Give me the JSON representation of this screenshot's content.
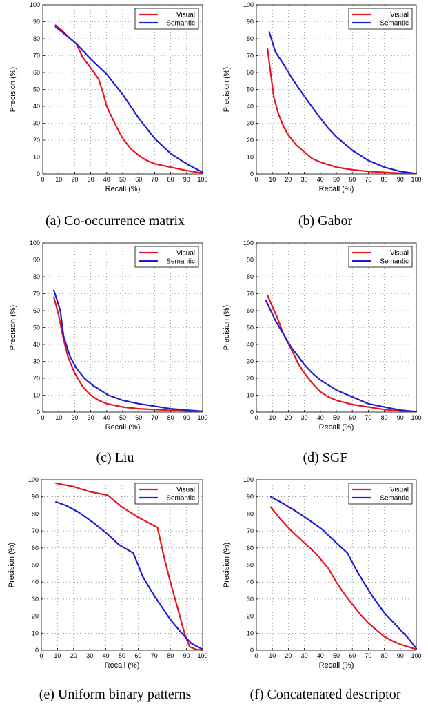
{
  "chart_data": [
    {
      "type": "line",
      "caption": "(a) Co-occurrence matrix",
      "xlabel": "Recall (%)",
      "ylabel": "Precision (%)",
      "xlim": [
        0,
        100
      ],
      "ylim": [
        0,
        100
      ],
      "xticks": [
        "0",
        "10",
        "20",
        "30",
        "40",
        "50",
        "60",
        "70",
        "80",
        "90",
        "100"
      ],
      "yticks": [
        "0",
        "10",
        "20",
        "30",
        "40",
        "50",
        "60",
        "70",
        "80",
        "90",
        "100"
      ],
      "grid": true,
      "legend": "top-right",
      "series": [
        {
          "name": "Visual",
          "color": "#e8161d",
          "points": [
            [
              8,
              88
            ],
            [
              12,
              85
            ],
            [
              16,
              81
            ],
            [
              21,
              77
            ],
            [
              25,
              69
            ],
            [
              29,
              64
            ],
            [
              35,
              56
            ],
            [
              38,
              47
            ],
            [
              40,
              40
            ],
            [
              45,
              30
            ],
            [
              50,
              21
            ],
            [
              55,
              15
            ],
            [
              60,
              11
            ],
            [
              65,
              8
            ],
            [
              70,
              6
            ],
            [
              80,
              4
            ],
            [
              90,
              2
            ],
            [
              100,
              0.5
            ]
          ]
        },
        {
          "name": "Semantic",
          "color": "#1f1fd1",
          "points": [
            [
              8,
              87
            ],
            [
              12,
              84
            ],
            [
              16,
              81
            ],
            [
              21,
              77
            ],
            [
              30,
              68
            ],
            [
              40,
              59
            ],
            [
              50,
              47
            ],
            [
              60,
              33
            ],
            [
              70,
              21
            ],
            [
              80,
              12
            ],
            [
              90,
              6
            ],
            [
              100,
              1
            ]
          ]
        }
      ]
    },
    {
      "type": "line",
      "caption": "(b) Gabor",
      "xlabel": "Recall (%)",
      "ylabel": "Precision (%)",
      "xlim": [
        0,
        100
      ],
      "ylim": [
        0,
        100
      ],
      "xticks": [
        "0",
        "10",
        "20",
        "30",
        "40",
        "50",
        "60",
        "70",
        "80",
        "90",
        "100"
      ],
      "yticks": [
        "0",
        "10",
        "20",
        "30",
        "40",
        "50",
        "60",
        "70",
        "80",
        "90",
        "100"
      ],
      "grid": true,
      "legend": "top-right",
      "series": [
        {
          "name": "Visual",
          "color": "#e8161d",
          "points": [
            [
              7,
              74
            ],
            [
              9,
              59
            ],
            [
              11,
              45
            ],
            [
              14,
              35
            ],
            [
              17,
              28
            ],
            [
              20,
              23
            ],
            [
              25,
              17
            ],
            [
              30,
              13
            ],
            [
              35,
              9
            ],
            [
              40,
              7
            ],
            [
              50,
              4
            ],
            [
              60,
              2.5
            ],
            [
              70,
              1.5
            ],
            [
              80,
              1
            ],
            [
              90,
              0.5
            ],
            [
              100,
              0.3
            ]
          ]
        },
        {
          "name": "Semantic",
          "color": "#1f1fd1",
          "points": [
            [
              8,
              84
            ],
            [
              12,
              72
            ],
            [
              17,
              65
            ],
            [
              22,
              57
            ],
            [
              27,
              50
            ],
            [
              33,
              42
            ],
            [
              40,
              33
            ],
            [
              45,
              27
            ],
            [
              50,
              22
            ],
            [
              60,
              14
            ],
            [
              70,
              8
            ],
            [
              80,
              4
            ],
            [
              90,
              1.5
            ],
            [
              100,
              0.3
            ]
          ]
        }
      ]
    },
    {
      "type": "line",
      "caption": "(c) Liu",
      "xlabel": "Recall (%)",
      "ylabel": "Precision (%)",
      "xlim": [
        0,
        100
      ],
      "ylim": [
        0,
        100
      ],
      "xticks": [
        "0",
        "10",
        "20",
        "30",
        "40",
        "50",
        "60",
        "70",
        "80",
        "90",
        "100"
      ],
      "yticks": [
        "0",
        "10",
        "20",
        "30",
        "40",
        "50",
        "60",
        "70",
        "80",
        "90",
        "100"
      ],
      "grid": true,
      "legend": "top-right",
      "series": [
        {
          "name": "Visual",
          "color": "#e8161d",
          "points": [
            [
              7,
              68
            ],
            [
              10,
              57
            ],
            [
              13,
              43
            ],
            [
              16,
              32
            ],
            [
              20,
              23
            ],
            [
              25,
              15
            ],
            [
              30,
              10
            ],
            [
              35,
              7
            ],
            [
              40,
              5
            ],
            [
              50,
              3
            ],
            [
              60,
              2
            ],
            [
              70,
              1.5
            ],
            [
              80,
              1
            ],
            [
              90,
              0.7
            ],
            [
              100,
              0.3
            ]
          ]
        },
        {
          "name": "Semantic",
          "color": "#1f1fd1",
          "points": [
            [
              7,
              72
            ],
            [
              11,
              60
            ],
            [
              13,
              45
            ],
            [
              17,
              33
            ],
            [
              21,
              26
            ],
            [
              26,
              20
            ],
            [
              31,
              16
            ],
            [
              36,
              13
            ],
            [
              41,
              10
            ],
            [
              50,
              7
            ],
            [
              60,
              5
            ],
            [
              70,
              3.5
            ],
            [
              80,
              2
            ],
            [
              90,
              1.2
            ],
            [
              100,
              0.5
            ]
          ]
        }
      ]
    },
    {
      "type": "line",
      "caption": "(d) SGF",
      "xlabel": "Recall (%)",
      "ylabel": "Precision (%)",
      "xlim": [
        0,
        100
      ],
      "ylim": [
        0,
        100
      ],
      "xticks": [
        "0",
        "10",
        "20",
        "30",
        "40",
        "50",
        "60",
        "70",
        "80",
        "90",
        "100"
      ],
      "yticks": [
        "0",
        "10",
        "20",
        "30",
        "40",
        "50",
        "60",
        "70",
        "80",
        "90",
        "100"
      ],
      "grid": true,
      "legend": "top-right",
      "series": [
        {
          "name": "Visual",
          "color": "#e8161d",
          "points": [
            [
              7,
              69
            ],
            [
              13,
              56
            ],
            [
              17,
              46
            ],
            [
              22,
              37
            ],
            [
              26,
              29
            ],
            [
              30,
              23
            ],
            [
              35,
              17
            ],
            [
              40,
              12
            ],
            [
              45,
              9
            ],
            [
              50,
              7
            ],
            [
              60,
              4.5
            ],
            [
              70,
              3
            ],
            [
              80,
              1.5
            ],
            [
              90,
              0.7
            ],
            [
              100,
              0.3
            ]
          ]
        },
        {
          "name": "Semantic",
          "color": "#1f1fd1",
          "points": [
            [
              6,
              66
            ],
            [
              12,
              54
            ],
            [
              17,
              46
            ],
            [
              22,
              38
            ],
            [
              27,
              32
            ],
            [
              30,
              28
            ],
            [
              35,
              23
            ],
            [
              40,
              19
            ],
            [
              50,
              13
            ],
            [
              60,
              9
            ],
            [
              70,
              5
            ],
            [
              80,
              3
            ],
            [
              90,
              1.2
            ],
            [
              100,
              0.3
            ]
          ]
        }
      ]
    },
    {
      "type": "line",
      "caption": "(e) Uniform binary patterns",
      "xlabel": "Recall (%)",
      "ylabel": "Precision (%)",
      "xlim": [
        0,
        100
      ],
      "ylim": [
        0,
        100
      ],
      "xticks": [
        "0",
        "10",
        "20",
        "30",
        "40",
        "50",
        "60",
        "70",
        "80",
        "90",
        "100"
      ],
      "yticks": [
        "0",
        "10",
        "20",
        "30",
        "40",
        "50",
        "60",
        "70",
        "80",
        "90",
        "100"
      ],
      "grid": true,
      "legend": "top-right",
      "series": [
        {
          "name": "Visual",
          "color": "#e8161d",
          "points": [
            [
              9,
              98
            ],
            [
              20,
              96
            ],
            [
              30,
              93
            ],
            [
              41,
              91
            ],
            [
              50,
              84
            ],
            [
              60,
              78
            ],
            [
              72,
              72
            ],
            [
              76,
              55
            ],
            [
              80,
              40
            ],
            [
              85,
              23
            ],
            [
              89,
              9
            ],
            [
              92,
              2
            ],
            [
              96,
              0.5
            ],
            [
              100,
              0
            ]
          ]
        },
        {
          "name": "Semantic",
          "color": "#1f1fd1",
          "points": [
            [
              9,
              87
            ],
            [
              15,
              85
            ],
            [
              23,
              81
            ],
            [
              32,
              75
            ],
            [
              40,
              69
            ],
            [
              48,
              62
            ],
            [
              57,
              57
            ],
            [
              63,
              43
            ],
            [
              70,
              32
            ],
            [
              75,
              25
            ],
            [
              80,
              18
            ],
            [
              87,
              10
            ],
            [
              93,
              4
            ],
            [
              100,
              0.5
            ]
          ]
        }
      ]
    },
    {
      "type": "line",
      "caption": "(f) Concatenated descriptor",
      "xlabel": "Recall (%)",
      "ylabel": "Precision (%)",
      "xlim": [
        0,
        100
      ],
      "ylim": [
        0,
        100
      ],
      "xticks": [
        "0",
        "10",
        "20",
        "30",
        "40",
        "50",
        "60",
        "70",
        "80",
        "90",
        "100"
      ],
      "yticks": [
        "0",
        "10",
        "20",
        "30",
        "40",
        "50",
        "60",
        "70",
        "80",
        "90",
        "100"
      ],
      "grid": true,
      "legend": "top-right",
      "series": [
        {
          "name": "Visual",
          "color": "#e8161d",
          "points": [
            [
              9,
              84
            ],
            [
              15,
              77
            ],
            [
              22,
              70
            ],
            [
              30,
              63
            ],
            [
              37,
              57
            ],
            [
              45,
              48
            ],
            [
              50,
              40
            ],
            [
              55,
              33
            ],
            [
              60,
              27
            ],
            [
              65,
              21
            ],
            [
              70,
              16
            ],
            [
              75,
              12
            ],
            [
              80,
              8
            ],
            [
              85,
              5.5
            ],
            [
              90,
              3.5
            ],
            [
              95,
              2
            ],
            [
              100,
              0.5
            ]
          ]
        },
        {
          "name": "Semantic",
          "color": "#1f1fd1",
          "points": [
            [
              9,
              90
            ],
            [
              15,
              87
            ],
            [
              24,
              82
            ],
            [
              32,
              77
            ],
            [
              41,
              71
            ],
            [
              50,
              63
            ],
            [
              57,
              57
            ],
            [
              62,
              48
            ],
            [
              67,
              40
            ],
            [
              73,
              31
            ],
            [
              80,
              22
            ],
            [
              88,
              14
            ],
            [
              95,
              7
            ],
            [
              100,
              1
            ]
          ]
        }
      ]
    }
  ]
}
